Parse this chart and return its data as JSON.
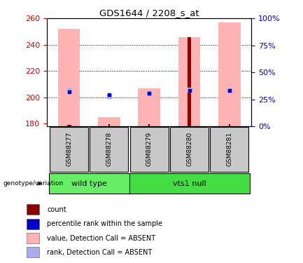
{
  "title": "GDS1644 / 2208_s_at",
  "samples": [
    "GSM88277",
    "GSM88278",
    "GSM88279",
    "GSM88280",
    "GSM88281"
  ],
  "ylim": [
    178,
    260
  ],
  "yticks": [
    180,
    200,
    220,
    240,
    260
  ],
  "y2lim": [
    0,
    100
  ],
  "y2ticks": [
    0,
    25,
    50,
    75,
    100
  ],
  "y2ticklabels": [
    "0%",
    "25%",
    "50%",
    "75%",
    "100%"
  ],
  "bar_base": 178,
  "pink_bar_tops": [
    252,
    185,
    207,
    246,
    257
  ],
  "red_bar_tops": [
    179.3,
    178.0,
    178.0,
    246,
    178.0
  ],
  "blue_dot_y": [
    204,
    202,
    203,
    205,
    205
  ],
  "light_blue_dot_y": [
    205,
    201,
    203,
    206,
    205
  ],
  "pink_color": "#FFB3B3",
  "red_color": "#8B0000",
  "blue_color": "#0000CD",
  "light_blue_color": "#AAAAEE",
  "wt_color": "#66EE66",
  "vt_color": "#44DD44",
  "ylabel_color": "#CC0000",
  "y2label_color": "#0000CC",
  "legend_items": [
    {
      "color": "#8B0000",
      "label": "count"
    },
    {
      "color": "#0000CD",
      "label": "percentile rank within the sample"
    },
    {
      "color": "#FFB3B3",
      "label": "value, Detection Call = ABSENT"
    },
    {
      "color": "#AAAAEE",
      "label": "rank, Detection Call = ABSENT"
    }
  ]
}
